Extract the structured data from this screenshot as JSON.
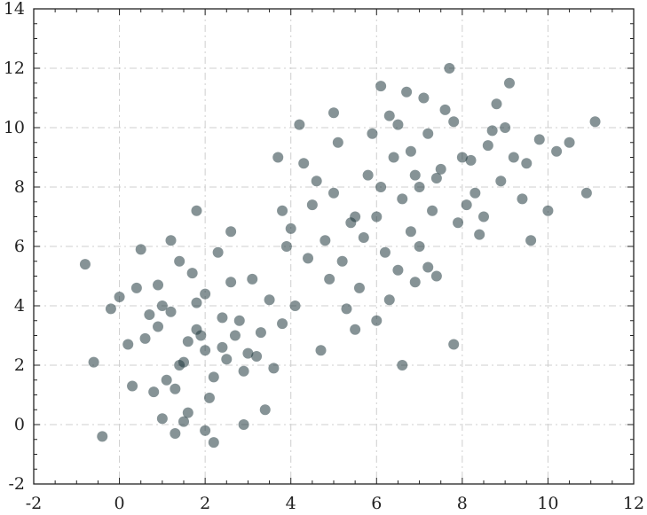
{
  "chart_data": {
    "type": "scatter",
    "title": "",
    "xlabel": "",
    "ylabel": "",
    "xlim": [
      -2,
      12
    ],
    "ylim": [
      -2,
      14
    ],
    "xticks": [
      -2,
      0,
      2,
      4,
      6,
      8,
      10,
      12
    ],
    "yticks": [
      -2,
      0,
      2,
      4,
      6,
      8,
      10,
      12,
      14
    ],
    "grid": true,
    "legend": "none",
    "marker_color": "#223a40",
    "marker_opacity": 0.55,
    "series": [
      {
        "x": [
          1.8,
          1.2,
          2.4,
          2.0,
          1.5,
          2.8,
          1.0,
          0.6,
          3.0,
          2.2,
          1.7,
          1.3,
          2.6,
          0.9,
          3.3,
          2.1,
          1.4,
          2.9,
          0.4,
          1.9,
          2.5,
          1.1,
          3.5,
          0.2,
          1.6,
          2.3,
          0.8,
          3.1,
          1.0,
          2.0,
          -0.8,
          -0.4,
          -0.6,
          0.0,
          1.2,
          1.5,
          2.6,
          3.4,
          0.5,
          1.8,
          2.2,
          1.4,
          0.7,
          3.8,
          3.6,
          0.3,
          2.9,
          1.3,
          -0.2,
          2.0,
          1.8,
          2.4,
          1.6,
          0.9,
          3.2,
          2.7
        ],
        "y": [
          3.2,
          3.8,
          2.6,
          4.4,
          2.1,
          3.5,
          4.0,
          2.9,
          2.4,
          1.6,
          5.1,
          1.2,
          4.8,
          3.3,
          3.1,
          0.9,
          5.5,
          1.8,
          4.6,
          3.0,
          2.2,
          1.5,
          4.2,
          2.7,
          0.4,
          5.8,
          1.1,
          4.9,
          0.2,
          -0.2,
          5.4,
          -0.4,
          2.1,
          4.3,
          6.2,
          0.1,
          6.5,
          0.5,
          5.9,
          7.2,
          -0.6,
          2.0,
          3.7,
          3.4,
          1.9,
          1.3,
          0.0,
          -0.3,
          3.9,
          2.5,
          4.1,
          3.6,
          2.8,
          4.7,
          2.3,
          3.0
        ]
      },
      {
        "x": [
          5.5,
          6.2,
          5.0,
          6.8,
          4.8,
          5.8,
          6.5,
          5.2,
          4.5,
          6.0,
          7.0,
          5.6,
          4.3,
          6.3,
          5.1,
          6.6,
          4.9,
          5.4,
          6.1,
          4.0,
          7.2,
          5.9,
          4.6,
          6.9,
          5.3,
          3.8,
          4.4,
          6.4,
          5.7,
          4.2,
          3.7,
          4.1,
          6.6,
          5.5,
          7.4,
          4.7,
          3.9,
          5.0,
          6.0,
          7.8
        ],
        "y": [
          7.0,
          5.8,
          7.8,
          6.5,
          6.2,
          8.4,
          5.2,
          5.5,
          7.4,
          7.0,
          6.0,
          4.6,
          8.8,
          4.2,
          9.5,
          7.6,
          4.9,
          6.8,
          8.0,
          6.6,
          5.3,
          9.8,
          8.2,
          4.8,
          3.9,
          7.2,
          5.6,
          9.0,
          6.3,
          10.1,
          9.0,
          4.0,
          2.0,
          3.2,
          5.0,
          2.5,
          6.0,
          10.5,
          3.5,
          2.7
        ]
      },
      {
        "x": [
          8.0,
          7.5,
          8.6,
          7.2,
          8.9,
          7.8,
          9.2,
          6.8,
          8.3,
          7.0,
          9.5,
          7.6,
          8.1,
          6.5,
          9.0,
          8.5,
          7.3,
          9.8,
          6.9,
          8.8,
          7.9,
          10.2,
          7.1,
          8.4,
          6.3,
          9.4,
          10.5,
          11.1,
          10.9,
          6.1,
          7.7,
          8.2,
          9.6,
          10.0,
          6.7,
          8.7,
          9.1,
          7.4
        ],
        "y": [
          9.0,
          8.6,
          9.4,
          9.8,
          8.2,
          10.2,
          9.0,
          9.2,
          7.8,
          8.0,
          8.8,
          10.6,
          7.4,
          10.1,
          10.0,
          7.0,
          7.2,
          9.6,
          8.4,
          10.8,
          6.8,
          9.2,
          11.0,
          6.4,
          10.4,
          7.6,
          9.5,
          10.2,
          7.8,
          11.4,
          12.0,
          8.9,
          6.2,
          7.2,
          11.2,
          9.9,
          11.5,
          8.3
        ]
      }
    ]
  }
}
